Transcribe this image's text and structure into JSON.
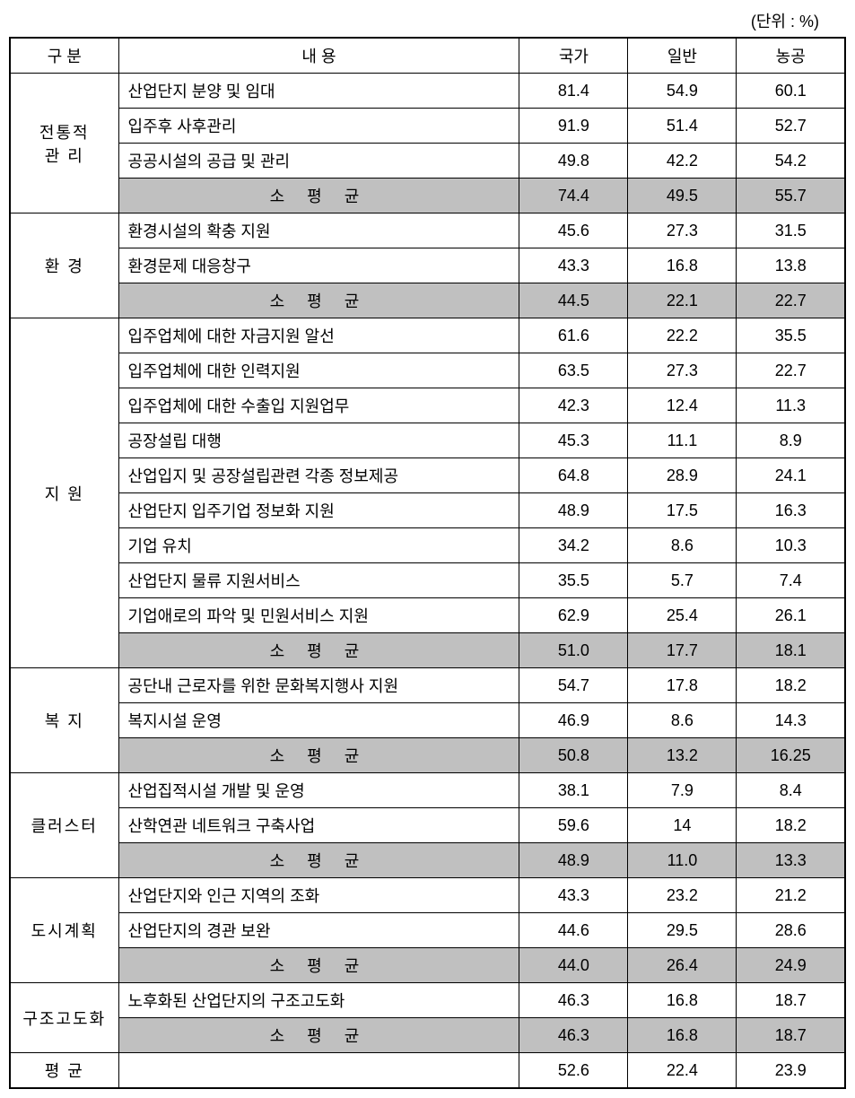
{
  "unit": "(단위 : %)",
  "headers": {
    "category": "구 분",
    "content": "내      용",
    "national": "국가",
    "general": "일반",
    "agri": "농공"
  },
  "sections": [
    {
      "name": "전통적\n관 리",
      "rows": [
        {
          "content": "산업단지 분양 및 임대",
          "v1": "81.4",
          "v2": "54.9",
          "v3": "60.1"
        },
        {
          "content": "입주후 사후관리",
          "v1": "91.9",
          "v2": "51.4",
          "v3": "52.7"
        },
        {
          "content": "공공시설의 공급 및 관리",
          "v1": "49.8",
          "v2": "42.2",
          "v3": "54.2"
        }
      ],
      "subavg": {
        "label": "소 평 균",
        "v1": "74.4",
        "v2": "49.5",
        "v3": "55.7"
      }
    },
    {
      "name": "환 경",
      "rows": [
        {
          "content": "환경시설의 확충 지원",
          "v1": "45.6",
          "v2": "27.3",
          "v3": "31.5"
        },
        {
          "content": "환경문제 대응창구",
          "v1": "43.3",
          "v2": "16.8",
          "v3": "13.8"
        }
      ],
      "subavg": {
        "label": "소 평 균",
        "v1": "44.5",
        "v2": "22.1",
        "v3": "22.7"
      }
    },
    {
      "name": "지  원",
      "rows": [
        {
          "content": "입주업체에 대한 자금지원 알선",
          "v1": "61.6",
          "v2": "22.2",
          "v3": "35.5"
        },
        {
          "content": "입주업체에 대한 인력지원",
          "v1": "63.5",
          "v2": "27.3",
          "v3": "22.7"
        },
        {
          "content": "입주업체에 대한 수출입 지원업무",
          "v1": "42.3",
          "v2": "12.4",
          "v3": "11.3"
        },
        {
          "content": "공장설립 대행",
          "v1": "45.3",
          "v2": "11.1",
          "v3": "8.9"
        },
        {
          "content": "산업입지 및 공장설립관련 각종 정보제공",
          "v1": "64.8",
          "v2": "28.9",
          "v3": "24.1"
        },
        {
          "content": "산업단지 입주기업 정보화 지원",
          "v1": "48.9",
          "v2": "17.5",
          "v3": "16.3"
        },
        {
          "content": "기업 유치",
          "v1": "34.2",
          "v2": "8.6",
          "v3": "10.3"
        },
        {
          "content": "산업단지 물류 지원서비스",
          "v1": "35.5",
          "v2": "5.7",
          "v3": "7.4"
        },
        {
          "content": "기업애로의 파악 및 민원서비스 지원",
          "v1": "62.9",
          "v2": "25.4",
          "v3": "26.1"
        }
      ],
      "subavg": {
        "label": "소 평 균",
        "v1": "51.0",
        "v2": "17.7",
        "v3": "18.1"
      }
    },
    {
      "name": "복 지",
      "rows": [
        {
          "content": "공단내 근로자를 위한 문화복지행사 지원",
          "v1": "54.7",
          "v2": "17.8",
          "v3": "18.2"
        },
        {
          "content": "복지시설 운영",
          "v1": "46.9",
          "v2": "8.6",
          "v3": "14.3"
        }
      ],
      "subavg": {
        "label": "소 평 균",
        "v1": "50.8",
        "v2": "13.2",
        "v3": "16.25"
      }
    },
    {
      "name": "클러스터",
      "rows": [
        {
          "content": "산업집적시설 개발 및 운영",
          "v1": "38.1",
          "v2": "7.9",
          "v3": "8.4"
        },
        {
          "content": "산학연관 네트워크 구축사업",
          "v1": "59.6",
          "v2": "14",
          "v3": "18.2"
        }
      ],
      "subavg": {
        "label": "소 평 균",
        "v1": "48.9",
        "v2": "11.0",
        "v3": "13.3"
      }
    },
    {
      "name": "도시계획",
      "rows": [
        {
          "content": "산업단지와 인근 지역의 조화",
          "v1": "43.3",
          "v2": "23.2",
          "v3": "21.2"
        },
        {
          "content": "산업단지의 경관 보완",
          "v1": "44.6",
          "v2": "29.5",
          "v3": "28.6"
        }
      ],
      "subavg": {
        "label": "소 평 균",
        "v1": "44.0",
        "v2": "26.4",
        "v3": "24.9"
      }
    },
    {
      "name": "구조고도화",
      "rows": [
        {
          "content": "노후화된 산업단지의 구조고도화",
          "v1": "46.3",
          "v2": "16.8",
          "v3": "18.7"
        }
      ],
      "subavg": {
        "label": "소 평 균",
        "v1": "46.3",
        "v2": "16.8",
        "v3": "18.7"
      }
    }
  ],
  "average": {
    "label": "평    균",
    "content": "",
    "v1": "52.6",
    "v2": "22.4",
    "v3": "23.9"
  },
  "styling": {
    "subavg_bg": "#c0c0c0",
    "border_color": "#000000",
    "background": "#ffffff",
    "col_widths": [
      "13%",
      "48%",
      "13%",
      "13%",
      "13%"
    ]
  }
}
